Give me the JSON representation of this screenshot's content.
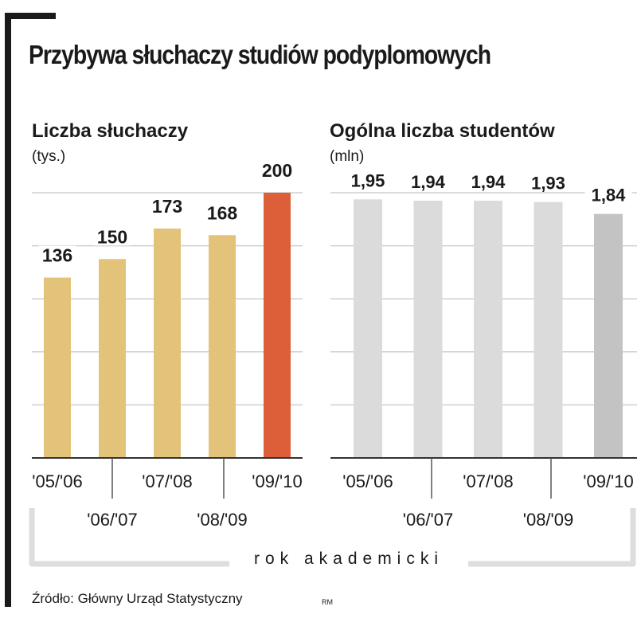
{
  "title": "Przybywa słuchaczy studiów podyplomowych",
  "axis_caption": "rok akademicki",
  "source": "Źródło: Główny Urząd Statystyczny",
  "credit": "RM",
  "colors": {
    "bar_main": "#e3c27a",
    "bar_highlight": "#dd5f3a",
    "bar_grey": "#dbdbdb",
    "bar_grey_highlight": "#c3c3c3",
    "grid": "#cfcfcf",
    "baseline": "#333333"
  },
  "chart_data": [
    {
      "type": "bar",
      "title": "Liczba słuchaczy",
      "unit": "(tys.)",
      "categories": [
        "'05/'06",
        "'06/'07",
        "'07/'08",
        "'08/'09",
        "'09/'10"
      ],
      "values": [
        136,
        150,
        173,
        168,
        200
      ],
      "labels": [
        "136",
        "150",
        "173",
        "168",
        "200"
      ],
      "highlight_index": 4,
      "ylim": [
        0,
        200
      ],
      "grid": true
    },
    {
      "type": "bar",
      "title": "Ogólna liczba studentów",
      "unit": "(mln)",
      "categories": [
        "'05/'06",
        "'06/'07",
        "'07/'08",
        "'08/'09",
        "'09/'10"
      ],
      "values": [
        1.95,
        1.94,
        1.94,
        1.93,
        1.84
      ],
      "labels": [
        "1,95",
        "1,94",
        "1,94",
        "1,93",
        "1,84"
      ],
      "highlight_index": 4,
      "ylim": [
        0,
        2.0
      ],
      "grid": true
    }
  ]
}
